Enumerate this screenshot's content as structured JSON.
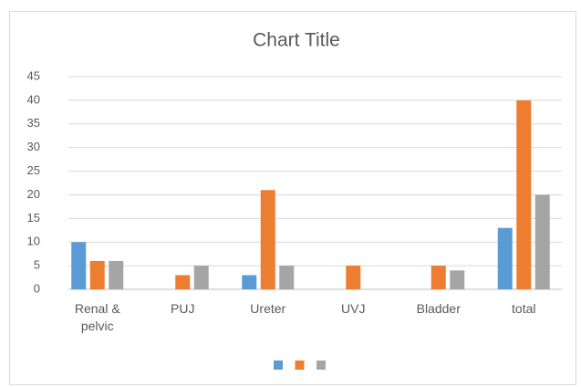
{
  "chart_data": {
    "type": "bar",
    "title": "Chart Title",
    "categories": [
      "Renal & pelvic",
      "PUJ",
      "Ureter",
      "UVJ",
      "Bladder",
      "total"
    ],
    "series": [
      {
        "color": "#5b9bd5",
        "values": [
          10,
          0,
          3,
          0,
          0,
          13
        ]
      },
      {
        "color": "#ed7d31",
        "values": [
          6,
          3,
          21,
          5,
          5,
          40
        ]
      },
      {
        "color": "#a5a5a5",
        "values": [
          6,
          5,
          5,
          0,
          4,
          20
        ]
      }
    ],
    "ylim": [
      0,
      45
    ],
    "yticks": [
      0,
      5,
      10,
      15,
      20,
      25,
      30,
      35,
      40,
      45
    ],
    "grid": true,
    "legend": "bottom"
  }
}
